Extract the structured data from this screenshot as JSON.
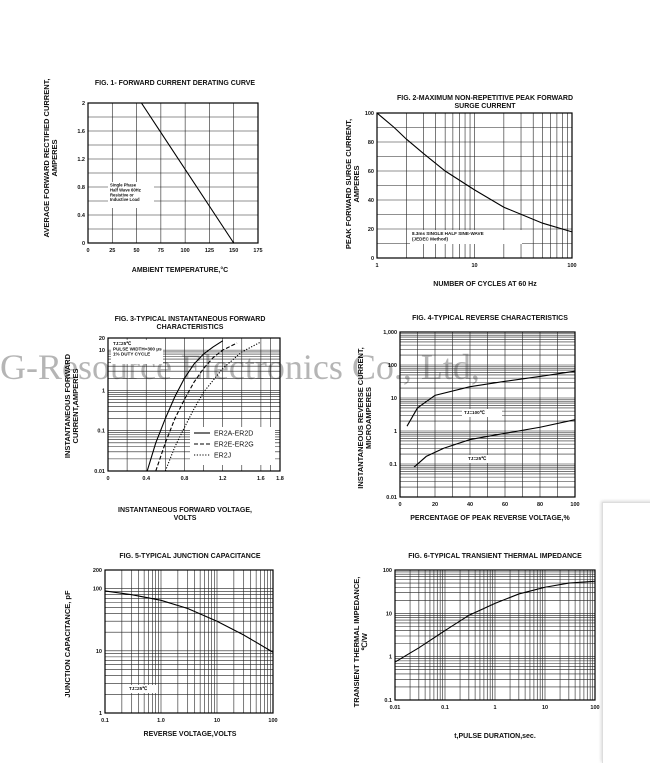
{
  "watermark": "G-Resource Electronics Co., Ltd,",
  "figures": [
    {
      "id": "fig1",
      "title": "FIG. 1- FORWARD CURRENT DERATING CURVE",
      "xlabel": "AMBIENT TEMPERATURE,°C",
      "ylabel": "AVERAGE FORWARD RECTIFIED CURRENT,\nAMPERES",
      "annotations": [
        "Single Phase\nHalf Wave 60Hz\nResistive or\nInductive Load"
      ]
    },
    {
      "id": "fig2",
      "title": "FIG. 2-MAXIMUM NON-REPETITIVE PEAK FORWARD\nSURGE CURRENT",
      "xlabel": "NUMBER OF CYCLES AT 60 Hz",
      "ylabel": "PEAK FORWARD SURGE CURRENT,\nAMPERES",
      "annotations": [
        "8.3ms SINGLE HALF SINE-WAVE\n(JEDEC Method)"
      ]
    },
    {
      "id": "fig3",
      "title": "FIG. 3-TYPICAL INSTANTANEOUS FORWARD\nCHARACTERISTICS",
      "xlabel": "INSTANTANEOUS FORWARD VOLTAGE,\nVOLTS",
      "ylabel": "INSTANTANEOUS FORWARD\nCURRENT,AMPERES",
      "annotations": [
        "TJ=25℃\nPULSE WIDTH=300 μs\n1% DUTY CYCLE"
      ]
    },
    {
      "id": "fig4",
      "title": "FIG. 4-TYPICAL REVERSE CHARACTERISTICS",
      "xlabel": "PERCENTAGE OF PEAK REVERSE VOLTAGE,%",
      "ylabel": "INSTANTANEOUS REVERSE CURRENT,\nMICROAMPERES",
      "annotations": [
        "TJ=100℃",
        "TJ=25℃"
      ]
    },
    {
      "id": "fig5",
      "title": "FIG. 5-TYPICAL JUNCTION CAPACITANCE",
      "xlabel": "REVERSE VOLTAGE,VOLTS",
      "ylabel": "JUNCTION CAPACITANCE, pF",
      "annotations": [
        "TJ=25℃"
      ]
    },
    {
      "id": "fig6",
      "title": "FIG. 6-TYPICAL TRANSIENT THERMAL IMPEDANCE",
      "xlabel": "t,PULSE DURATION,sec.",
      "ylabel": "TRANSIENT THERMAL IMPEDANCE,\n℃/W",
      "annotations": []
    }
  ],
  "chart_data": [
    {
      "type": "line",
      "title": "FIG. 1- FORWARD CURRENT DERATING CURVE",
      "xlabel": "AMBIENT TEMPERATURE,°C",
      "ylabel": "AVERAGE FORWARD RECTIFIED CURRENT, AMPERES",
      "xscale": "linear",
      "yscale": "linear",
      "xlim": [
        0,
        175
      ],
      "ylim": [
        0,
        2
      ],
      "xticks": [
        "0",
        "25",
        "50",
        "75",
        "100",
        "125",
        "150",
        "175"
      ],
      "yticks": [
        "0",
        "0.4",
        "0.8",
        "1.2",
        "1.6",
        "2"
      ],
      "grid": true,
      "series": [
        {
          "color": "#000000",
          "points": [
            [
              0,
              2
            ],
            [
              55,
              2
            ],
            [
              150,
              0
            ]
          ]
        }
      ]
    },
    {
      "type": "line",
      "title": "FIG. 2-MAXIMUM NON-REPETITIVE PEAK FORWARD SURGE CURRENT",
      "xlabel": "NUMBER OF CYCLES AT 60 Hz",
      "ylabel": "PEAK FORWARD SURGE CURRENT, AMPERES",
      "xscale": "log",
      "yscale": "linear",
      "xlim": [
        1,
        100
      ],
      "ylim": [
        0,
        100
      ],
      "xticks": [
        "1",
        "10",
        "100"
      ],
      "yticks": [
        "0",
        "20",
        "40",
        "60",
        "80",
        "100"
      ],
      "grid": true,
      "series": [
        {
          "color": "#000000",
          "points": [
            [
              1,
              100
            ],
            [
              1.5,
              90
            ],
            [
              2,
              82
            ],
            [
              3,
              72
            ],
            [
              5,
              60
            ],
            [
              10,
              47
            ],
            [
              20,
              35
            ],
            [
              50,
              24
            ],
            [
              100,
              18
            ]
          ]
        }
      ]
    },
    {
      "type": "line",
      "title": "FIG. 3-TYPICAL INSTANTANEOUS FORWARD CHARACTERISTICS",
      "xlabel": "INSTANTANEOUS FORWARD VOLTAGE, VOLTS",
      "ylabel": "INSTANTANEOUS FORWARD CURRENT,AMPERES",
      "xscale": "linear",
      "yscale": "log",
      "xlim": [
        0,
        1.8
      ],
      "ylim": [
        0.01,
        20
      ],
      "xticks": [
        "0",
        "0.4",
        "0.8",
        "1.2",
        "1.6",
        "1.8"
      ],
      "yticks": [
        "0.01",
        "0.1",
        "1",
        "10",
        "20"
      ],
      "legend": "bottom-right",
      "grid": true,
      "series": [
        {
          "name": "ER2A-ER2D",
          "dash": "solid",
          "color": "#000000",
          "points": [
            [
              0.41,
              0.01
            ],
            [
              0.5,
              0.05
            ],
            [
              0.6,
              0.2
            ],
            [
              0.7,
              0.7
            ],
            [
              0.8,
              2
            ],
            [
              0.9,
              4.5
            ],
            [
              1.0,
              8
            ],
            [
              1.1,
              12
            ],
            [
              1.2,
              17
            ]
          ]
        },
        {
          "name": "ER2E-ER2G",
          "dash": "dashed",
          "color": "#000000",
          "points": [
            [
              0.5,
              0.01
            ],
            [
              0.6,
              0.05
            ],
            [
              0.7,
              0.2
            ],
            [
              0.8,
              0.6
            ],
            [
              0.9,
              1.6
            ],
            [
              1.0,
              3.5
            ],
            [
              1.1,
              6.5
            ],
            [
              1.2,
              10
            ],
            [
              1.35,
              15
            ]
          ]
        },
        {
          "name": "ER2J",
          "dash": "dotted",
          "color": "#000000",
          "points": [
            [
              0.6,
              0.01
            ],
            [
              0.7,
              0.04
            ],
            [
              0.8,
              0.12
            ],
            [
              0.9,
              0.35
            ],
            [
              1.0,
              0.9
            ],
            [
              1.2,
              3.5
            ],
            [
              1.4,
              9
            ],
            [
              1.6,
              16
            ]
          ]
        }
      ]
    },
    {
      "type": "line",
      "title": "FIG. 4-TYPICAL REVERSE CHARACTERISTICS",
      "xlabel": "PERCENTAGE OF PEAK REVERSE VOLTAGE,%",
      "ylabel": "INSTANTANEOUS REVERSE CURRENT, MICROAMPERES",
      "xscale": "linear",
      "yscale": "log",
      "xlim": [
        0,
        100
      ],
      "ylim": [
        0.01,
        1000
      ],
      "xticks": [
        "0",
        "20",
        "40",
        "60",
        "80",
        "100"
      ],
      "yticks": [
        "0.01",
        "0.1",
        "1",
        "10",
        "100",
        "1,000"
      ],
      "grid": true,
      "series": [
        {
          "name": "TJ=100℃",
          "color": "#000000",
          "points": [
            [
              4,
              1.4
            ],
            [
              10,
              5
            ],
            [
              20,
              12
            ],
            [
              40,
              22
            ],
            [
              60,
              32
            ],
            [
              80,
              45
            ],
            [
              100,
              65
            ]
          ]
        },
        {
          "name": "TJ=25℃",
          "color": "#000000",
          "points": [
            [
              8,
              0.08
            ],
            [
              15,
              0.17
            ],
            [
              25,
              0.3
            ],
            [
              40,
              0.55
            ],
            [
              60,
              0.85
            ],
            [
              80,
              1.3
            ],
            [
              100,
              2.2
            ]
          ]
        }
      ]
    },
    {
      "type": "line",
      "title": "FIG. 5-TYPICAL JUNCTION CAPACITANCE",
      "xlabel": "REVERSE VOLTAGE,VOLTS",
      "ylabel": "JUNCTION CAPACITANCE, pF",
      "xscale": "log",
      "yscale": "log",
      "xlim": [
        0.1,
        100
      ],
      "ylim": [
        1,
        200
      ],
      "xticks": [
        "0.1",
        "1.0",
        "10",
        "100"
      ],
      "yticks": [
        "1",
        "10",
        "100",
        "200"
      ],
      "grid": true,
      "series": [
        {
          "color": "#000000",
          "points": [
            [
              0.1,
              92
            ],
            [
              0.3,
              80
            ],
            [
              1,
              65
            ],
            [
              3,
              48
            ],
            [
              10,
              30
            ],
            [
              30,
              18
            ],
            [
              100,
              9.5
            ]
          ]
        }
      ]
    },
    {
      "type": "line",
      "title": "FIG. 6-TYPICAL TRANSIENT THERMAL IMPEDANCE",
      "xlabel": "t,PULSE DURATION,sec.",
      "ylabel": "TRANSIENT THERMAL IMPEDANCE, ℃/W",
      "xscale": "log",
      "yscale": "log",
      "xlim": [
        0.01,
        100
      ],
      "ylim": [
        0.1,
        100
      ],
      "xticks": [
        "0.01",
        "0.1",
        "1",
        "10",
        "100"
      ],
      "yticks": [
        "0.1",
        "1",
        "10",
        "100"
      ],
      "grid": true,
      "series": [
        {
          "color": "#000000",
          "points": [
            [
              0.01,
              0.75
            ],
            [
              0.03,
              1.6
            ],
            [
              0.1,
              4
            ],
            [
              0.3,
              9
            ],
            [
              1,
              17
            ],
            [
              3,
              28
            ],
            [
              10,
              40
            ],
            [
              30,
              50
            ],
            [
              100,
              55
            ]
          ]
        }
      ]
    }
  ]
}
